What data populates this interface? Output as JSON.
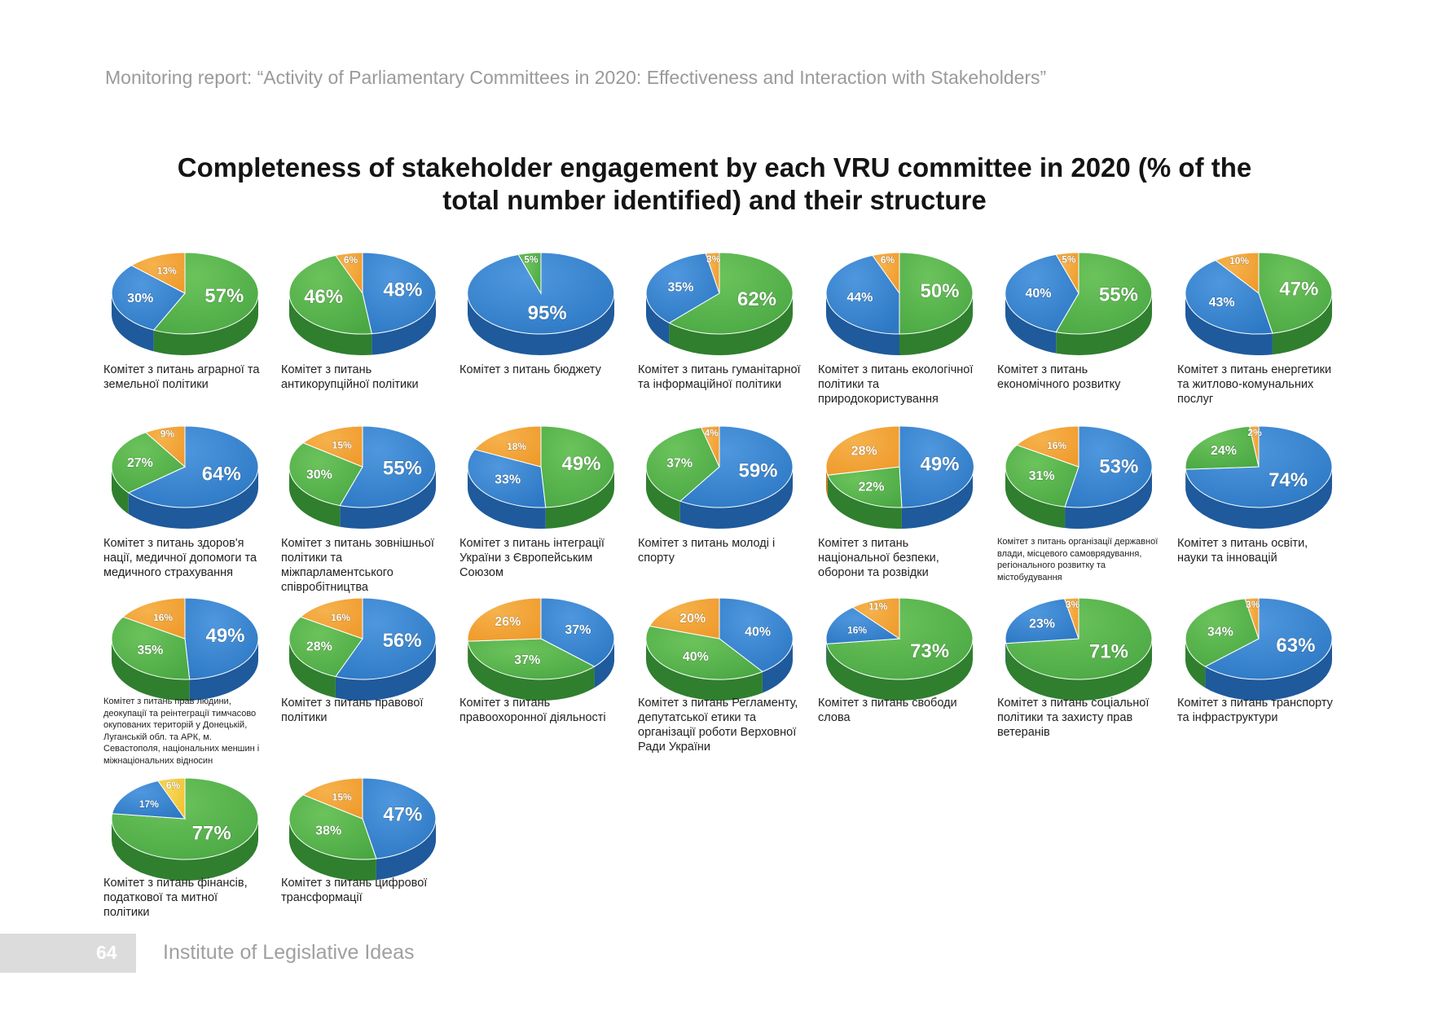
{
  "header": {
    "running_head": "Monitoring report: “Activity of Parliamentary Committees in 2020: Effectiveness and Interaction with Stakeholders”"
  },
  "title": {
    "line1": "Completeness of stakeholder engagement by each VRU committee in 2020 (% of the",
    "line2": "total number identified) and their structure"
  },
  "colors": {
    "blue": "#2d78c4",
    "green": "#4aa843",
    "orange": "#ef9a2b",
    "yellow": "#f2c12e",
    "footer_box": "#dcdcdc"
  },
  "chart_data": [
    {
      "type": "pie",
      "label": "Комітет з питань аграрної та земельної політики",
      "slices": [
        {
          "color": "green",
          "value": 57
        },
        {
          "color": "blue",
          "value": 30
        },
        {
          "color": "orange",
          "value": 13
        }
      ]
    },
    {
      "type": "pie",
      "label": "Комітет з питань антикорупційної політики",
      "slices": [
        {
          "color": "blue",
          "value": 48
        },
        {
          "color": "green",
          "value": 46
        },
        {
          "color": "orange",
          "value": 6
        }
      ]
    },
    {
      "type": "pie",
      "label": "Комітет з питань бюджету",
      "slices": [
        {
          "color": "blue",
          "value": 95
        },
        {
          "color": "green",
          "value": 5
        }
      ]
    },
    {
      "type": "pie",
      "label": "Комітет з питань гуманітарної та інформаційної політики",
      "slices": [
        {
          "color": "green",
          "value": 62
        },
        {
          "color": "blue",
          "value": 35
        },
        {
          "color": "orange",
          "value": 3
        }
      ]
    },
    {
      "type": "pie",
      "label": "Комітет з питань екологічної політики та природокористування",
      "slices": [
        {
          "color": "green",
          "value": 50
        },
        {
          "color": "blue",
          "value": 44
        },
        {
          "color": "orange",
          "value": 6
        }
      ]
    },
    {
      "type": "pie",
      "label": "Комітет з питань економічного розвитку",
      "slices": [
        {
          "color": "green",
          "value": 55
        },
        {
          "color": "blue",
          "value": 40
        },
        {
          "color": "orange",
          "value": 5
        }
      ]
    },
    {
      "type": "pie",
      "label": "Комітет з питань енергетики та житлово-комунальних послуг",
      "slices": [
        {
          "color": "green",
          "value": 47
        },
        {
          "color": "blue",
          "value": 43
        },
        {
          "color": "orange",
          "value": 10
        }
      ]
    },
    {
      "type": "pie",
      "label": "Комітет з питань здоров'я нації, медичної допомоги та медичного страхування",
      "slices": [
        {
          "color": "blue",
          "value": 64
        },
        {
          "color": "green",
          "value": 27
        },
        {
          "color": "orange",
          "value": 9
        }
      ]
    },
    {
      "type": "pie",
      "label": "Комітет з питань зовнішньої політики та міжпарламентського співробітництва",
      "slices": [
        {
          "color": "blue",
          "value": 55
        },
        {
          "color": "green",
          "value": 30
        },
        {
          "color": "orange",
          "value": 15
        }
      ]
    },
    {
      "type": "pie",
      "label": "Комітет з питань інтеграції України з Європейським Союзом",
      "slices": [
        {
          "color": "green",
          "value": 49
        },
        {
          "color": "blue",
          "value": 33
        },
        {
          "color": "orange",
          "value": 18
        }
      ]
    },
    {
      "type": "pie",
      "label": "Комітет з питань молоді і спорту",
      "slices": [
        {
          "color": "blue",
          "value": 59
        },
        {
          "color": "green",
          "value": 37
        },
        {
          "color": "orange",
          "value": 4
        }
      ]
    },
    {
      "type": "pie",
      "label": "Комітет з питань національної безпеки, оборони та розвідки",
      "slices": [
        {
          "color": "blue",
          "value": 49
        },
        {
          "color": "green",
          "value": 22
        },
        {
          "color": "orange",
          "value": 28
        }
      ]
    },
    {
      "type": "pie",
      "label": "Комітет з питань організації державної влади, місцевого самоврядування, регіонального розвитку та містобудування",
      "slices": [
        {
          "color": "blue",
          "value": 53
        },
        {
          "color": "green",
          "value": 31
        },
        {
          "color": "orange",
          "value": 16
        }
      ]
    },
    {
      "type": "pie",
      "label": "Комітет з питань освіти, науки та інновацій",
      "slices": [
        {
          "color": "blue",
          "value": 74
        },
        {
          "color": "green",
          "value": 24
        },
        {
          "color": "orange",
          "value": 2
        }
      ]
    },
    {
      "type": "pie",
      "label": "Комітет з питань прав людини, деокупації та реінтеграції тимчасово окупованих територій у Донецькій, Луганській обл. та АРК, м. Севастополя, національних меншин і міжнаціональних відносин",
      "slices": [
        {
          "color": "blue",
          "value": 49
        },
        {
          "color": "green",
          "value": 35
        },
        {
          "color": "orange",
          "value": 16
        }
      ]
    },
    {
      "type": "pie",
      "label": "Комітет з питань правової політики",
      "slices": [
        {
          "color": "blue",
          "value": 56
        },
        {
          "color": "green",
          "value": 28
        },
        {
          "color": "orange",
          "value": 16
        }
      ]
    },
    {
      "type": "pie",
      "label": "Комітет з питань правоохоронної діяльності",
      "slices": [
        {
          "color": "blue",
          "value": 37
        },
        {
          "color": "green",
          "value": 37
        },
        {
          "color": "orange",
          "value": 26
        }
      ]
    },
    {
      "type": "pie",
      "label": "Комітет з питань Регламенту, депутатської етики та організації роботи Верховної Ради України",
      "slices": [
        {
          "color": "blue",
          "value": 40
        },
        {
          "color": "green",
          "value": 40
        },
        {
          "color": "orange",
          "value": 20
        }
      ]
    },
    {
      "type": "pie",
      "label": "Комітет з питань свободи слова",
      "slices": [
        {
          "color": "green",
          "value": 73
        },
        {
          "color": "blue",
          "value": 16
        },
        {
          "color": "orange",
          "value": 11
        }
      ]
    },
    {
      "type": "pie",
      "label": "Комітет з питань соціальної політики та захисту прав ветеранів",
      "slices": [
        {
          "color": "green",
          "value": 71
        },
        {
          "color": "blue",
          "value": 23
        },
        {
          "color": "orange",
          "value": 3
        }
      ]
    },
    {
      "type": "pie",
      "label": "Комітет з питань транспорту та інфраструктури",
      "slices": [
        {
          "color": "blue",
          "value": 63
        },
        {
          "color": "green",
          "value": 34
        },
        {
          "color": "orange",
          "value": 3
        }
      ]
    },
    {
      "type": "pie",
      "label": "Комітет з питань фінансів, податкової та митної політики",
      "slices": [
        {
          "color": "green",
          "value": 77
        },
        {
          "color": "blue",
          "value": 17
        },
        {
          "color": "yellow",
          "value": 6
        }
      ]
    },
    {
      "type": "pie",
      "label": "Комітет з питань цифрової трансформації",
      "slices": [
        {
          "color": "blue",
          "value": 47
        },
        {
          "color": "green",
          "value": 38
        },
        {
          "color": "orange",
          "value": 15
        }
      ]
    }
  ],
  "footer": {
    "page_number": "64",
    "org": "Institute of Legislative Ideas"
  }
}
